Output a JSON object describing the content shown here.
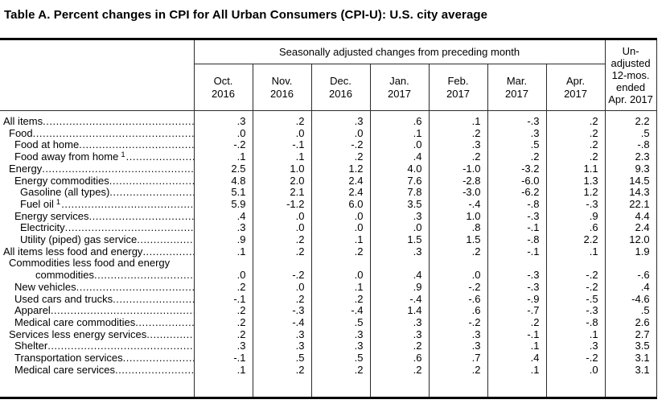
{
  "title": "Table A. Percent changes in CPI for All Urban Consumers (CPI-U): U.S. city average",
  "table": {
    "group_header": "Seasonally adjusted changes from preceding month",
    "month_columns": [
      {
        "month": "Oct.",
        "year": "2016"
      },
      {
        "month": "Nov.",
        "year": "2016"
      },
      {
        "month": "Dec.",
        "year": "2016"
      },
      {
        "month": "Jan.",
        "year": "2017"
      },
      {
        "month": "Feb.",
        "year": "2017"
      },
      {
        "month": "Mar.",
        "year": "2017"
      },
      {
        "month": "Apr.",
        "year": "2017"
      }
    ],
    "unadjusted_header_lines": [
      "Un-",
      "adjusted",
      "12-mos.",
      "ended",
      "Apr. 2017"
    ],
    "rows": [
      {
        "label": "All items",
        "indent": 0,
        "values": [
          ".3",
          ".2",
          ".3",
          ".6",
          ".1",
          "-.3",
          ".2",
          "2.2"
        ]
      },
      {
        "label": "Food",
        "indent": 1,
        "values": [
          ".0",
          ".0",
          ".0",
          ".1",
          ".2",
          ".3",
          ".2",
          ".5"
        ]
      },
      {
        "label": "Food at home",
        "indent": 2,
        "values": [
          "-.2",
          "-.1",
          "-.2",
          ".0",
          ".3",
          ".5",
          ".2",
          "-.8"
        ]
      },
      {
        "label": "Food away from home",
        "sup": "1",
        "indent": 2,
        "values": [
          ".1",
          ".1",
          ".2",
          ".4",
          ".2",
          ".2",
          ".2",
          "2.3"
        ]
      },
      {
        "label": "Energy",
        "indent": 1,
        "values": [
          "2.5",
          "1.0",
          "1.2",
          "4.0",
          "-1.0",
          "-3.2",
          "1.1",
          "9.3"
        ]
      },
      {
        "label": "Energy commodities",
        "indent": 2,
        "values": [
          "4.8",
          "2.0",
          "2.4",
          "7.6",
          "-2.8",
          "-6.0",
          "1.3",
          "14.5"
        ]
      },
      {
        "label": "Gasoline (all types)",
        "indent": 3,
        "values": [
          "5.1",
          "2.1",
          "2.4",
          "7.8",
          "-3.0",
          "-6.2",
          "1.2",
          "14.3"
        ]
      },
      {
        "label": "Fuel oil",
        "sup": "1",
        "indent": 3,
        "values": [
          "5.9",
          "-1.2",
          "6.0",
          "3.5",
          "-.4",
          "-.8",
          "-.3",
          "22.1"
        ]
      },
      {
        "label": "Energy services",
        "indent": 2,
        "values": [
          ".4",
          ".0",
          ".0",
          ".3",
          "1.0",
          "-.3",
          ".9",
          "4.4"
        ]
      },
      {
        "label": "Electricity",
        "indent": 3,
        "values": [
          ".3",
          ".0",
          ".0",
          ".0",
          ".8",
          "-.1",
          ".6",
          "2.4"
        ]
      },
      {
        "label": "Utility (piped) gas service",
        "indent": 3,
        "values": [
          ".9",
          ".2",
          ".1",
          "1.5",
          "1.5",
          "-.8",
          "2.2",
          "12.0"
        ]
      },
      {
        "label": "All items less food and energy",
        "indent": 0,
        "values": [
          ".1",
          ".2",
          ".2",
          ".3",
          ".2",
          "-.1",
          ".1",
          "1.9"
        ]
      },
      {
        "label": "Commodities less food and energy",
        "label2": "commodities",
        "indent": 1,
        "values": [
          ".0",
          "-.2",
          ".0",
          ".4",
          ".0",
          "-.3",
          "-.2",
          "-.6"
        ]
      },
      {
        "label": "New vehicles",
        "indent": 2,
        "values": [
          ".2",
          ".0",
          ".1",
          ".9",
          "-.2",
          "-.3",
          "-.2",
          ".4"
        ]
      },
      {
        "label": "Used cars and trucks",
        "indent": 2,
        "values": [
          "-.1",
          ".2",
          ".2",
          "-.4",
          "-.6",
          "-.9",
          "-.5",
          "-4.6"
        ]
      },
      {
        "label": "Apparel",
        "indent": 2,
        "values": [
          ".2",
          "-.3",
          "-.4",
          "1.4",
          ".6",
          "-.7",
          "-.3",
          ".5"
        ]
      },
      {
        "label": "Medical care commodities",
        "indent": 2,
        "values": [
          ".2",
          "-.4",
          ".5",
          ".3",
          "-.2",
          ".2",
          "-.8",
          "2.6"
        ]
      },
      {
        "label": "Services less energy services",
        "indent": 1,
        "values": [
          ".2",
          ".3",
          ".3",
          ".3",
          ".3",
          "-.1",
          ".1",
          "2.7"
        ]
      },
      {
        "label": "Shelter",
        "indent": 2,
        "values": [
          ".3",
          ".3",
          ".3",
          ".2",
          ".3",
          ".1",
          ".3",
          "3.5"
        ]
      },
      {
        "label": "Transportation services",
        "indent": 2,
        "values": [
          "-.1",
          ".5",
          ".5",
          ".6",
          ".7",
          ".4",
          "-.2",
          "3.1"
        ]
      },
      {
        "label": "Medical care services",
        "indent": 2,
        "values": [
          ".1",
          ".2",
          ".2",
          ".2",
          ".2",
          ".1",
          ".0",
          "3.1"
        ]
      }
    ]
  }
}
